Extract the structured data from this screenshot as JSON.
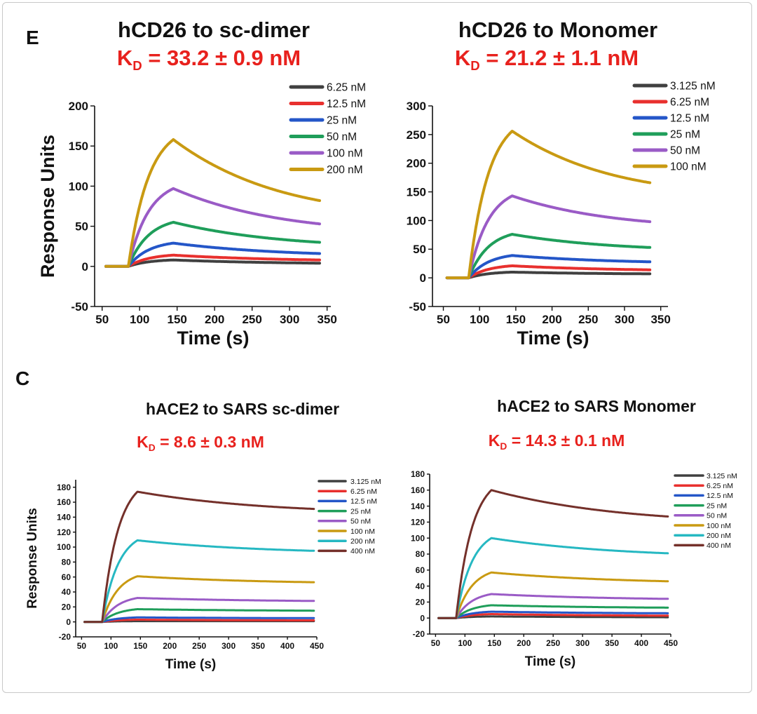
{
  "panel_labels": {
    "top": "E",
    "bottom": "C"
  },
  "colors": {
    "kd_text": "#e8211d",
    "series": [
      "#404040",
      "#e8302e",
      "#2456c8",
      "#1f9e5a",
      "#9a5bc6",
      "#c99a12",
      "#26b8c2",
      "#74302a"
    ]
  },
  "chart_data": [
    {
      "type": "line",
      "title": "hCD26 to sc-dimer",
      "kd": {
        "prefix": "K",
        "sub": "D",
        "value": " = 33.2 ± 0.9 nM"
      },
      "xlabel": "Time (s)",
      "ylabel": "Response Units",
      "xlim": [
        40,
        355
      ],
      "ylim": [
        -50,
        200
      ],
      "xticks": [
        50,
        100,
        150,
        200,
        250,
        300,
        350
      ],
      "yticks": [
        -50,
        0,
        50,
        100,
        150,
        200
      ],
      "legend_position": "top-right",
      "kinetics": {
        "baseline_start": 55,
        "inject": 85,
        "dissoc": 145,
        "end": 340
      },
      "series": [
        {
          "name": "6.25 nM",
          "peak": 8,
          "end": 4
        },
        {
          "name": "12.5 nM",
          "peak": 14,
          "end": 8
        },
        {
          "name": "25 nM",
          "peak": 29,
          "end": 16
        },
        {
          "name": "50 nM",
          "peak": 55,
          "end": 30
        },
        {
          "name": "100 nM",
          "peak": 97,
          "end": 53
        },
        {
          "name": "200 nM",
          "peak": 158,
          "end": 82
        }
      ]
    },
    {
      "type": "line",
      "title": "hCD26 to Monomer",
      "kd": {
        "prefix": "K",
        "sub": "D",
        "value": " = 21.2 ± 1.1 nM"
      },
      "xlabel": "Time (s)",
      "ylabel": "",
      "xlim": [
        35,
        360
      ],
      "ylim": [
        -50,
        300
      ],
      "xticks": [
        50,
        100,
        150,
        200,
        250,
        300,
        350
      ],
      "yticks": [
        -50,
        0,
        50,
        100,
        150,
        200,
        250,
        300
      ],
      "legend_position": "top-right",
      "kinetics": {
        "baseline_start": 55,
        "inject": 85,
        "dissoc": 145,
        "end": 335
      },
      "series": [
        {
          "name": "3.125 nM",
          "peak": 10,
          "end": 7
        },
        {
          "name": "6.25 nM",
          "peak": 21,
          "end": 14
        },
        {
          "name": "12.5 nM",
          "peak": 39,
          "end": 28
        },
        {
          "name": "25 nM",
          "peak": 76,
          "end": 53
        },
        {
          "name": "50 nM",
          "peak": 143,
          "end": 98
        },
        {
          "name": "100 nM",
          "peak": 256,
          "end": 166
        }
      ]
    },
    {
      "type": "line",
      "title": "hACE2 to SARS sc-dimer",
      "kd": {
        "prefix": "K",
        "sub": "D",
        "value": " = 8.6 ± 0.3 nM"
      },
      "xlabel": "Time (s)",
      "ylabel": "Response Units",
      "xlim": [
        40,
        450
      ],
      "ylim": [
        -20,
        190
      ],
      "xticks": [
        50,
        100,
        150,
        200,
        250,
        300,
        350,
        400,
        450
      ],
      "yticks": [
        -20,
        0,
        20,
        40,
        60,
        80,
        100,
        120,
        140,
        160,
        180
      ],
      "legend_position": "top-right",
      "kinetics": {
        "baseline_start": 55,
        "inject": 85,
        "dissoc": 145,
        "end": 445
      },
      "series": [
        {
          "name": "3.125 nM",
          "peak": 1,
          "end": 1
        },
        {
          "name": "6.25 nM",
          "peak": 3,
          "end": 2
        },
        {
          "name": "12.5 nM",
          "peak": 6,
          "end": 5
        },
        {
          "name": "25 nM",
          "peak": 17,
          "end": 15
        },
        {
          "name": "50 nM",
          "peak": 32,
          "end": 28
        },
        {
          "name": "100 nM",
          "peak": 61,
          "end": 53
        },
        {
          "name": "200 nM",
          "peak": 109,
          "end": 95
        },
        {
          "name": "400 nM",
          "peak": 174,
          "end": 151
        }
      ]
    },
    {
      "type": "line",
      "title": "hACE2 to SARS Monomer",
      "kd": {
        "prefix": "K",
        "sub": "D",
        "value": " = 14.3 ± 0.1 nM"
      },
      "xlabel": "Time (s)",
      "ylabel": "",
      "xlim": [
        40,
        450
      ],
      "ylim": [
        -20,
        180
      ],
      "xticks": [
        50,
        100,
        150,
        200,
        250,
        300,
        350,
        400,
        450
      ],
      "yticks": [
        -20,
        0,
        20,
        40,
        60,
        80,
        100,
        120,
        140,
        160,
        180
      ],
      "legend_position": "top-right",
      "kinetics": {
        "baseline_start": 55,
        "inject": 85,
        "dissoc": 145,
        "end": 445
      },
      "series": [
        {
          "name": "3.125 nM",
          "peak": 2,
          "end": 1
        },
        {
          "name": "6.25 nM",
          "peak": 5,
          "end": 3
        },
        {
          "name": "12.5 nM",
          "peak": 8,
          "end": 6
        },
        {
          "name": "25 nM",
          "peak": 16,
          "end": 13
        },
        {
          "name": "50 nM",
          "peak": 30,
          "end": 24
        },
        {
          "name": "100 nM",
          "peak": 57,
          "end": 46
        },
        {
          "name": "200 nM",
          "peak": 100,
          "end": 81
        },
        {
          "name": "400 nM",
          "peak": 160,
          "end": 127
        }
      ]
    }
  ]
}
